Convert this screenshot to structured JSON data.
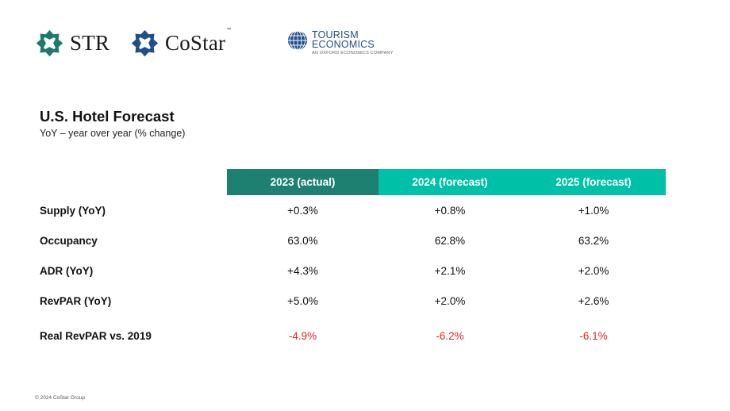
{
  "logos": {
    "str": {
      "name": "STR",
      "color": "#1e7a6a"
    },
    "costar": {
      "name": "CoStar",
      "trademark": "™",
      "color": "#1f4e8c"
    },
    "tourism_economics": {
      "line1": "TOURISM",
      "line2": "ECONOMICS",
      "tagline": "AN OXFORD ECONOMICS COMPANY",
      "color": "#1f4e8c"
    }
  },
  "title": "U.S. Hotel Forecast",
  "subtitle": "YoY – year over year (% change)",
  "table": {
    "columns": [
      "2023 (actual)",
      "2024 (forecast)",
      "2025 (forecast)"
    ],
    "rows": [
      {
        "label": "Supply (YoY)",
        "values": [
          "+0.3%",
          "+0.8%",
          "+1.0%"
        ]
      },
      {
        "label": "Occupancy",
        "values": [
          "63.0%",
          "62.8%",
          "63.2%"
        ]
      },
      {
        "label": "ADR (YoY)",
        "values": [
          "+4.3%",
          "+2.1%",
          "+2.0%"
        ]
      },
      {
        "label": "RevPAR (YoY)",
        "values": [
          "+5.0%",
          "+2.0%",
          "+2.6%"
        ]
      },
      {
        "label": "Real RevPAR vs. 2019",
        "values": [
          "-4.9%",
          "-6.2%",
          "-6.1%"
        ]
      }
    ]
  },
  "colors": {
    "actual_header": "#1e8070",
    "forecast_header": "#00c1a7",
    "negative": "#e52521"
  },
  "footer": "© 2024 CoStar Group"
}
